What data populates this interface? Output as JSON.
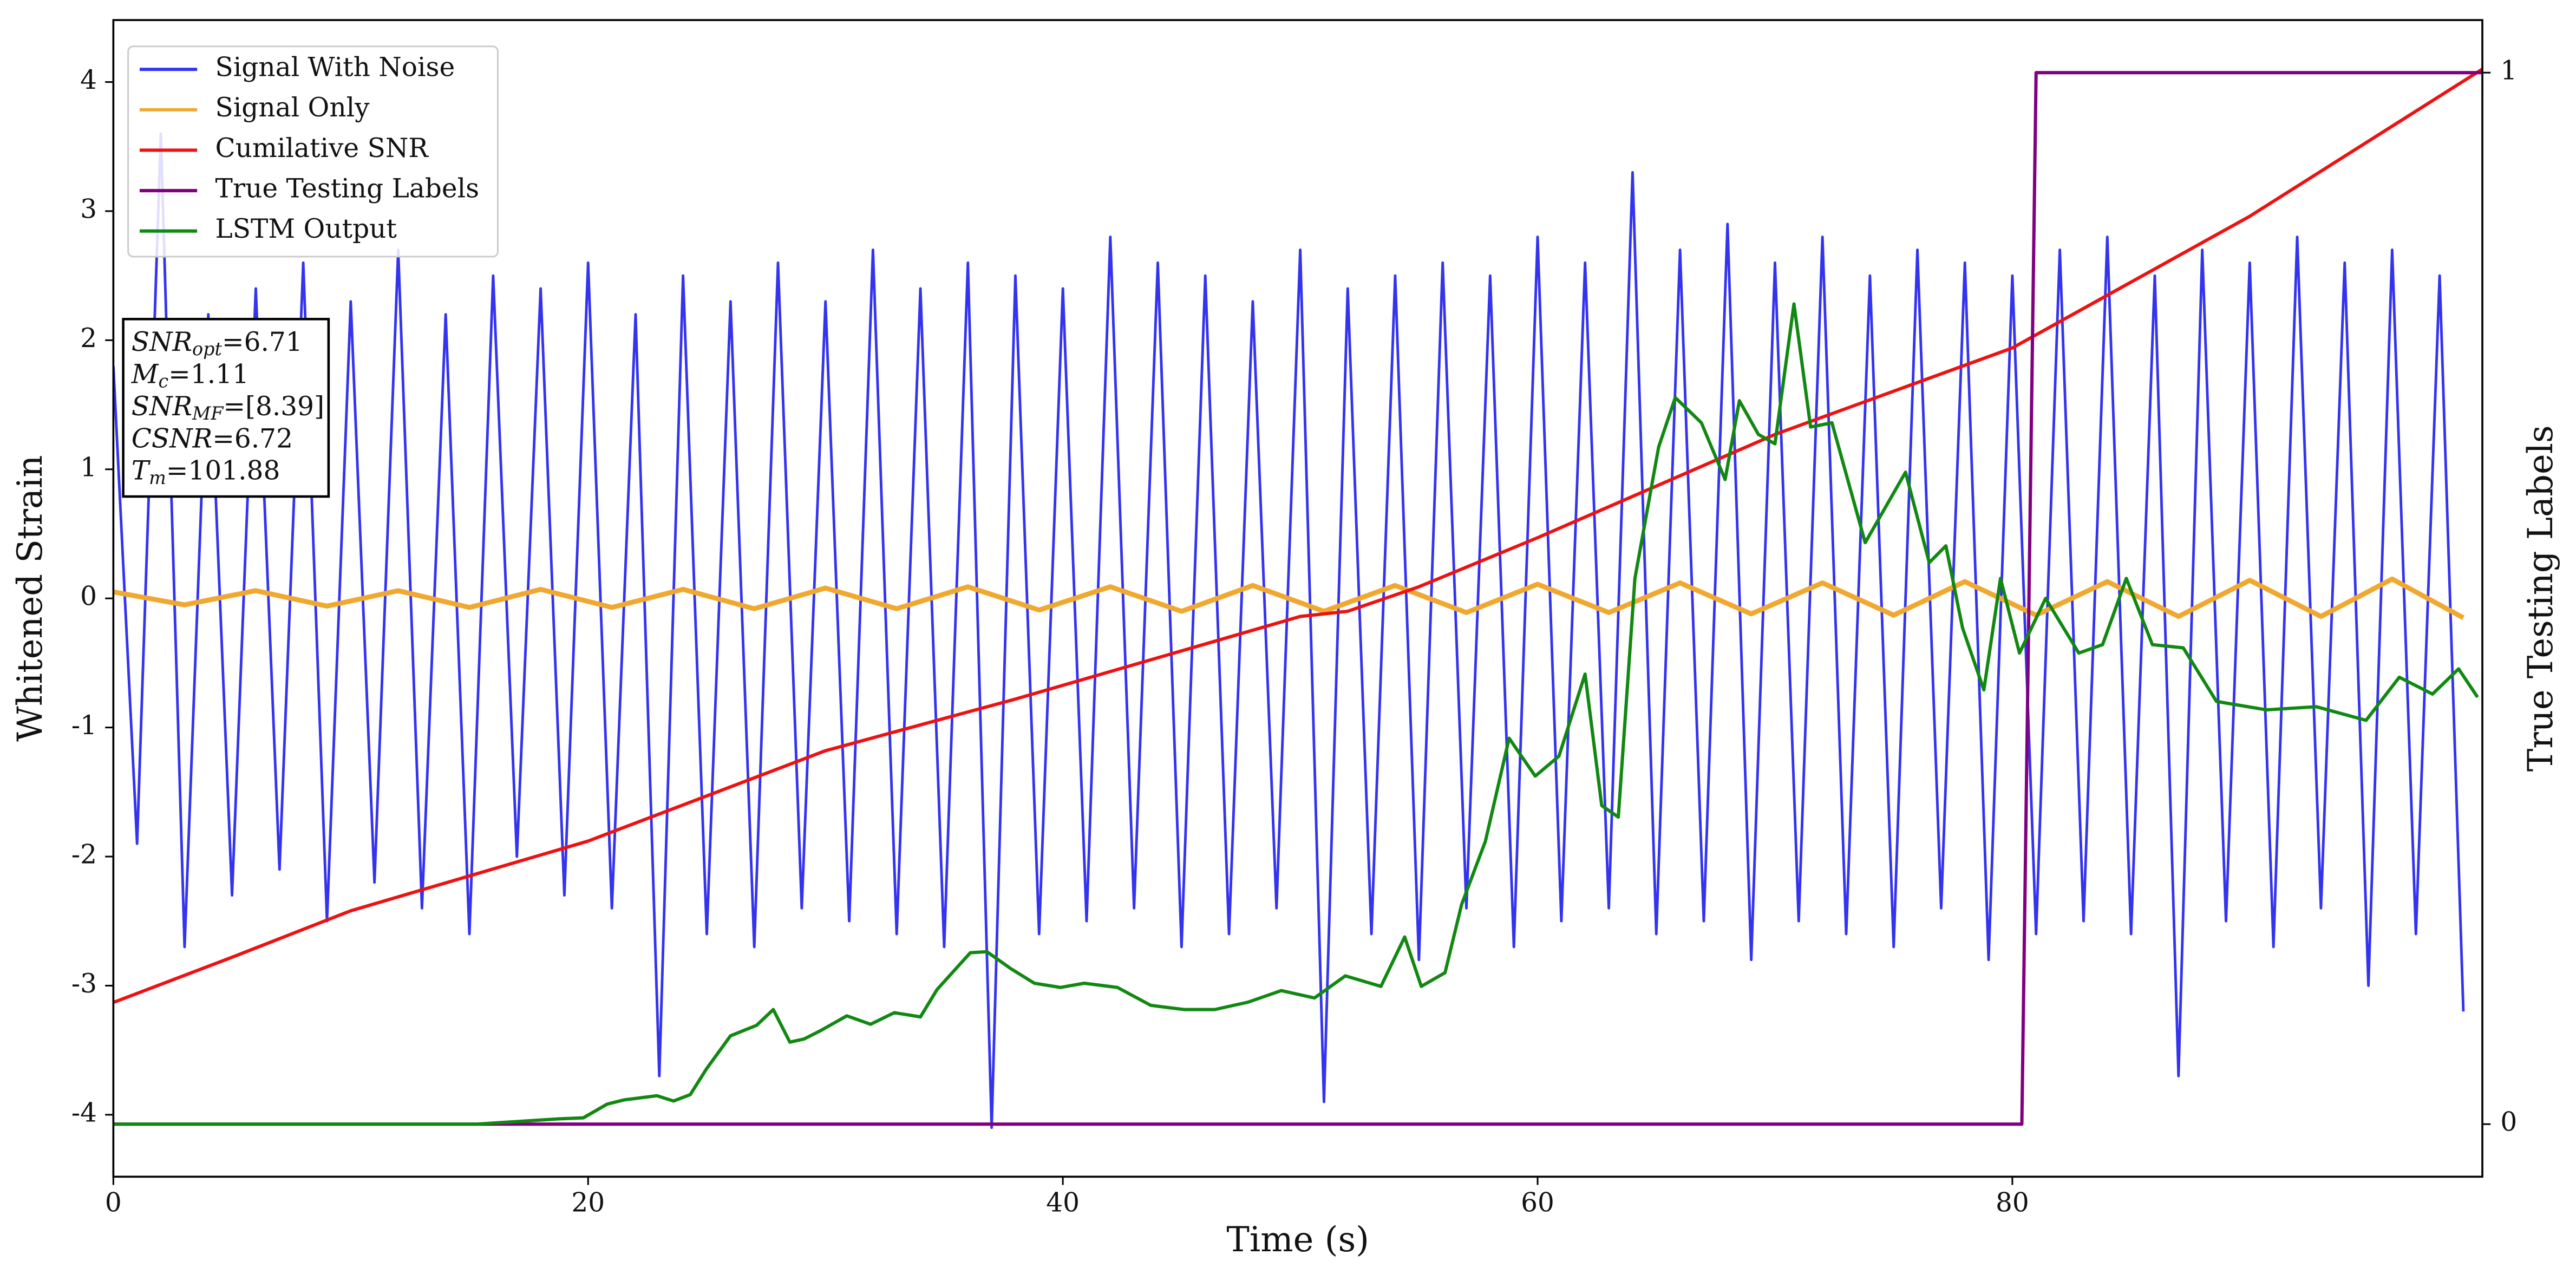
{
  "chart_data": {
    "type": "line",
    "xlabel": "Time (s)",
    "ylabel": "Whitened Strain",
    "y2label": "True Testing Labels",
    "xlim": [
      0,
      99.8
    ],
    "xticks": [
      0,
      20,
      40,
      60,
      80
    ],
    "ylim": [
      -4.48,
      4.48
    ],
    "yticks": [
      -4,
      -3,
      -2,
      -1,
      0,
      1,
      2,
      3,
      4
    ],
    "y2lim": [
      -0.05,
      1.05
    ],
    "y2ticks": [
      0,
      1
    ],
    "legend": "upper-left",
    "annotation": [
      {
        "base": "SNR",
        "sub": "opt",
        "text": "=6.71"
      },
      {
        "base": "M",
        "sub": "c",
        "text": "=1.11"
      },
      {
        "base": "SNR",
        "sub": "MF",
        "text": "=[8.39]"
      },
      {
        "base": "CSNR",
        "text": "=6.72"
      },
      {
        "base": "T",
        "sub": "m",
        "text": "=101.88"
      }
    ],
    "series": [
      {
        "name": "Signal With Noise",
        "color": "#3333f0",
        "axis": "y",
        "x": [
          0,
          1,
          2,
          3,
          4,
          5,
          6,
          7,
          8,
          9,
          10,
          11,
          12,
          13,
          14,
          15,
          16,
          17,
          18,
          19,
          20,
          21,
          22,
          23,
          24,
          25,
          26,
          27,
          28,
          29,
          30,
          31,
          32,
          33,
          34,
          35,
          36,
          37,
          38,
          39,
          40,
          41,
          42,
          43,
          44,
          45,
          46,
          47,
          48,
          49,
          50,
          51,
          52,
          53,
          54,
          55,
          56,
          57,
          58,
          59,
          60,
          61,
          62,
          63,
          64,
          65,
          66,
          67,
          68,
          69,
          70,
          71,
          72,
          73,
          74,
          75,
          76,
          77,
          78,
          79,
          80,
          81,
          82,
          83,
          84,
          85,
          86,
          87,
          88,
          89,
          90,
          91,
          92,
          93,
          94,
          95,
          96,
          97,
          98,
          99
        ],
        "values": [
          1.8,
          -1.9,
          3.6,
          -2.7,
          2.2,
          -2.3,
          2.4,
          -2.1,
          2.6,
          -2.5,
          2.3,
          -2.2,
          2.7,
          -2.4,
          2.2,
          -2.6,
          2.5,
          -2.0,
          2.4,
          -2.3,
          2.6,
          -2.4,
          2.2,
          -3.7,
          2.5,
          -2.6,
          2.3,
          -2.7,
          2.6,
          -2.4,
          2.3,
          -2.5,
          2.7,
          -2.6,
          2.4,
          -2.7,
          2.6,
          -4.1,
          2.5,
          -2.6,
          2.4,
          -2.5,
          2.8,
          -2.4,
          2.6,
          -2.7,
          2.5,
          -2.6,
          2.3,
          -2.4,
          2.7,
          -3.9,
          2.4,
          -2.6,
          2.5,
          -2.8,
          2.6,
          -2.4,
          2.5,
          -2.7,
          2.8,
          -2.5,
          2.6,
          -2.4,
          3.3,
          -2.6,
          2.7,
          -2.5,
          2.9,
          -2.8,
          2.6,
          -2.5,
          2.8,
          -2.6,
          2.5,
          -2.7,
          2.7,
          -2.4,
          2.6,
          -2.8,
          2.5,
          -2.6,
          2.7,
          -2.5,
          2.8,
          -2.6,
          2.5,
          -3.7,
          2.7,
          -2.5,
          2.6,
          -2.7,
          2.8,
          -2.4,
          2.6,
          -3.0,
          2.7,
          -2.6,
          2.5,
          -3.2
        ]
      },
      {
        "name": "Signal Only",
        "color": "#f0a830",
        "axis": "y",
        "x": [
          0,
          3,
          6,
          9,
          12,
          15,
          18,
          21,
          24,
          27,
          30,
          33,
          36,
          39,
          42,
          45,
          48,
          51,
          54,
          57,
          60,
          63,
          66,
          69,
          72,
          75,
          78,
          81,
          84,
          87,
          90,
          93,
          96,
          99
        ],
        "values": [
          0.05,
          -0.05,
          0.06,
          -0.06,
          0.06,
          -0.07,
          0.07,
          -0.07,
          0.07,
          -0.08,
          0.08,
          -0.08,
          0.09,
          -0.09,
          0.09,
          -0.1,
          0.1,
          -0.1,
          0.1,
          -0.11,
          0.11,
          -0.11,
          0.12,
          -0.12,
          0.12,
          -0.13,
          0.13,
          -0.13,
          0.13,
          -0.14,
          0.14,
          -0.14,
          0.15,
          -0.15
        ]
      },
      {
        "name": "Cumilative SNR",
        "color": "#ee1111",
        "axis": "y",
        "x": [
          0,
          5,
          10,
          20,
          30,
          38,
          50,
          52,
          55,
          60,
          70,
          80,
          90,
          99.8
        ],
        "values": [
          -3.13,
          -2.78,
          -2.42,
          -1.88,
          -1.18,
          -0.78,
          -0.14,
          -0.1,
          0.09,
          0.47,
          1.27,
          1.94,
          2.96,
          4.1
        ]
      },
      {
        "name": "True Testing Labels",
        "color": "#800080",
        "axis": "y2",
        "x": [
          0,
          80.4,
          81,
          99.8
        ],
        "values": [
          0,
          0,
          1,
          1
        ]
      },
      {
        "name": "LSTM Output",
        "color": "#118811",
        "axis": "y2",
        "x": [
          0,
          15.3,
          18.75,
          19.8,
          20.8,
          21.5,
          22.9,
          23.6,
          24.3,
          25.0,
          26.0,
          27.1,
          27.8,
          28.5,
          29.1,
          29.8,
          30.9,
          31.9,
          32.9,
          34.0,
          34.7,
          36.1,
          36.8,
          37.8,
          38.8,
          39.9,
          40.9,
          42.3,
          43.7,
          45.1,
          46.4,
          47.8,
          49.2,
          50.6,
          51.9,
          53.4,
          54.4,
          55.1,
          56.1,
          56.8,
          57.8,
          58.8,
          59.9,
          60.9,
          62.0,
          62.7,
          63.4,
          64.1,
          65.1,
          65.8,
          66.9,
          67.9,
          68.5,
          69.3,
          70.0,
          70.8,
          71.5,
          72.4,
          73.8,
          75.5,
          76.5,
          77.2,
          77.9,
          78.8,
          79.5,
          80.3,
          81.4,
          82.8,
          83.8,
          84.8,
          85.9,
          87.2,
          88.6,
          90.7,
          92.8,
          94.9,
          96.3,
          97.7,
          98.8,
          99.6
        ],
        "values": [
          0,
          0,
          0.005,
          0.006,
          0.019,
          0.023,
          0.027,
          0.022,
          0.028,
          0.053,
          0.084,
          0.094,
          0.109,
          0.078,
          0.081,
          0.089,
          0.103,
          0.095,
          0.106,
          0.102,
          0.128,
          0.163,
          0.164,
          0.148,
          0.134,
          0.13,
          0.134,
          0.13,
          0.113,
          0.109,
          0.109,
          0.116,
          0.127,
          0.12,
          0.141,
          0.131,
          0.178,
          0.131,
          0.144,
          0.209,
          0.269,
          0.367,
          0.331,
          0.35,
          0.428,
          0.303,
          0.292,
          0.519,
          0.644,
          0.691,
          0.667,
          0.613,
          0.688,
          0.656,
          0.647,
          0.78,
          0.663,
          0.667,
          0.553,
          0.62,
          0.534,
          0.55,
          0.472,
          0.413,
          0.519,
          0.448,
          0.5,
          0.448,
          0.456,
          0.519,
          0.456,
          0.453,
          0.402,
          0.394,
          0.397,
          0.384,
          0.425,
          0.409,
          0.433,
          0.406
        ]
      }
    ]
  }
}
